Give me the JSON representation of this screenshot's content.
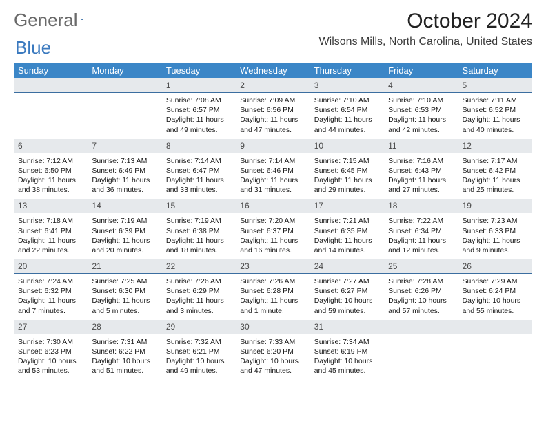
{
  "brand": {
    "word1": "General",
    "word2": "Blue",
    "color_gray": "#6a6a6a",
    "color_blue": "#3b7abf",
    "shape_color": "#2f6aa8"
  },
  "title": "October 2024",
  "location": "Wilsons Mills, North Carolina, United States",
  "daysOfWeek": [
    "Sunday",
    "Monday",
    "Tuesday",
    "Wednesday",
    "Thursday",
    "Friday",
    "Saturday"
  ],
  "colors": {
    "header_bg": "#3b86c7",
    "header_text": "#ffffff",
    "daynum_bg": "#e6e9ec",
    "daynum_border": "#3b6ea0"
  },
  "weeks": [
    {
      "nums": [
        "",
        "",
        "1",
        "2",
        "3",
        "4",
        "5"
      ],
      "lines": [
        [],
        [],
        [
          "Sunrise: 7:08 AM",
          "Sunset: 6:57 PM",
          "Daylight: 11 hours",
          "and 49 minutes."
        ],
        [
          "Sunrise: 7:09 AM",
          "Sunset: 6:56 PM",
          "Daylight: 11 hours",
          "and 47 minutes."
        ],
        [
          "Sunrise: 7:10 AM",
          "Sunset: 6:54 PM",
          "Daylight: 11 hours",
          "and 44 minutes."
        ],
        [
          "Sunrise: 7:10 AM",
          "Sunset: 6:53 PM",
          "Daylight: 11 hours",
          "and 42 minutes."
        ],
        [
          "Sunrise: 7:11 AM",
          "Sunset: 6:52 PM",
          "Daylight: 11 hours",
          "and 40 minutes."
        ]
      ]
    },
    {
      "nums": [
        "6",
        "7",
        "8",
        "9",
        "10",
        "11",
        "12"
      ],
      "lines": [
        [
          "Sunrise: 7:12 AM",
          "Sunset: 6:50 PM",
          "Daylight: 11 hours",
          "and 38 minutes."
        ],
        [
          "Sunrise: 7:13 AM",
          "Sunset: 6:49 PM",
          "Daylight: 11 hours",
          "and 36 minutes."
        ],
        [
          "Sunrise: 7:14 AM",
          "Sunset: 6:47 PM",
          "Daylight: 11 hours",
          "and 33 minutes."
        ],
        [
          "Sunrise: 7:14 AM",
          "Sunset: 6:46 PM",
          "Daylight: 11 hours",
          "and 31 minutes."
        ],
        [
          "Sunrise: 7:15 AM",
          "Sunset: 6:45 PM",
          "Daylight: 11 hours",
          "and 29 minutes."
        ],
        [
          "Sunrise: 7:16 AM",
          "Sunset: 6:43 PM",
          "Daylight: 11 hours",
          "and 27 minutes."
        ],
        [
          "Sunrise: 7:17 AM",
          "Sunset: 6:42 PM",
          "Daylight: 11 hours",
          "and 25 minutes."
        ]
      ]
    },
    {
      "nums": [
        "13",
        "14",
        "15",
        "16",
        "17",
        "18",
        "19"
      ],
      "lines": [
        [
          "Sunrise: 7:18 AM",
          "Sunset: 6:41 PM",
          "Daylight: 11 hours",
          "and 22 minutes."
        ],
        [
          "Sunrise: 7:19 AM",
          "Sunset: 6:39 PM",
          "Daylight: 11 hours",
          "and 20 minutes."
        ],
        [
          "Sunrise: 7:19 AM",
          "Sunset: 6:38 PM",
          "Daylight: 11 hours",
          "and 18 minutes."
        ],
        [
          "Sunrise: 7:20 AM",
          "Sunset: 6:37 PM",
          "Daylight: 11 hours",
          "and 16 minutes."
        ],
        [
          "Sunrise: 7:21 AM",
          "Sunset: 6:35 PM",
          "Daylight: 11 hours",
          "and 14 minutes."
        ],
        [
          "Sunrise: 7:22 AM",
          "Sunset: 6:34 PM",
          "Daylight: 11 hours",
          "and 12 minutes."
        ],
        [
          "Sunrise: 7:23 AM",
          "Sunset: 6:33 PM",
          "Daylight: 11 hours",
          "and 9 minutes."
        ]
      ]
    },
    {
      "nums": [
        "20",
        "21",
        "22",
        "23",
        "24",
        "25",
        "26"
      ],
      "lines": [
        [
          "Sunrise: 7:24 AM",
          "Sunset: 6:32 PM",
          "Daylight: 11 hours",
          "and 7 minutes."
        ],
        [
          "Sunrise: 7:25 AM",
          "Sunset: 6:30 PM",
          "Daylight: 11 hours",
          "and 5 minutes."
        ],
        [
          "Sunrise: 7:26 AM",
          "Sunset: 6:29 PM",
          "Daylight: 11 hours",
          "and 3 minutes."
        ],
        [
          "Sunrise: 7:26 AM",
          "Sunset: 6:28 PM",
          "Daylight: 11 hours",
          "and 1 minute."
        ],
        [
          "Sunrise: 7:27 AM",
          "Sunset: 6:27 PM",
          "Daylight: 10 hours",
          "and 59 minutes."
        ],
        [
          "Sunrise: 7:28 AM",
          "Sunset: 6:26 PM",
          "Daylight: 10 hours",
          "and 57 minutes."
        ],
        [
          "Sunrise: 7:29 AM",
          "Sunset: 6:24 PM",
          "Daylight: 10 hours",
          "and 55 minutes."
        ]
      ]
    },
    {
      "nums": [
        "27",
        "28",
        "29",
        "30",
        "31",
        "",
        ""
      ],
      "lines": [
        [
          "Sunrise: 7:30 AM",
          "Sunset: 6:23 PM",
          "Daylight: 10 hours",
          "and 53 minutes."
        ],
        [
          "Sunrise: 7:31 AM",
          "Sunset: 6:22 PM",
          "Daylight: 10 hours",
          "and 51 minutes."
        ],
        [
          "Sunrise: 7:32 AM",
          "Sunset: 6:21 PM",
          "Daylight: 10 hours",
          "and 49 minutes."
        ],
        [
          "Sunrise: 7:33 AM",
          "Sunset: 6:20 PM",
          "Daylight: 10 hours",
          "and 47 minutes."
        ],
        [
          "Sunrise: 7:34 AM",
          "Sunset: 6:19 PM",
          "Daylight: 10 hours",
          "and 45 minutes."
        ],
        [],
        []
      ]
    }
  ]
}
